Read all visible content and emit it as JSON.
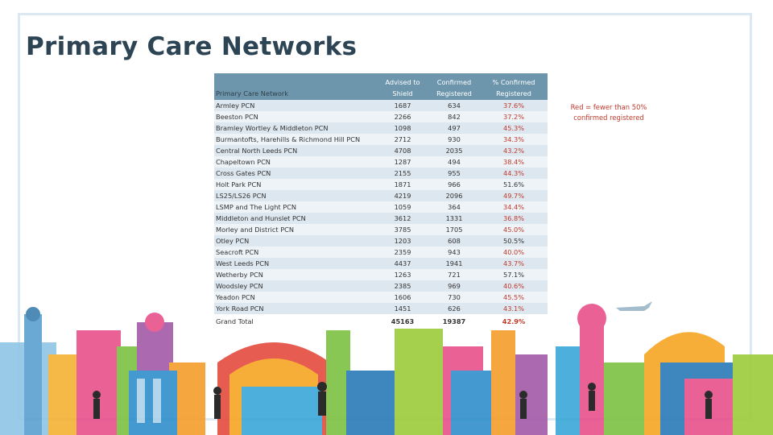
{
  "page": {
    "title": "Primary Care Networks"
  },
  "table": {
    "headers": [
      "Primary Care Network",
      "Advised to Shield",
      "Confirmed Registered",
      "% Confirmed Registered"
    ],
    "rows": [
      {
        "name": "Armley PCN",
        "shield": "1687",
        "confirmed": "634",
        "pct": "37.6%",
        "below_half": true
      },
      {
        "name": "Beeston PCN",
        "shield": "2266",
        "confirmed": "842",
        "pct": "37.2%",
        "below_half": true
      },
      {
        "name": "Bramley Wortley & Middleton PCN",
        "shield": "1098",
        "confirmed": "497",
        "pct": "45.3%",
        "below_half": true
      },
      {
        "name": "Burmantofts, Harehills & Richmond Hill PCN",
        "shield": "2712",
        "confirmed": "930",
        "pct": "34.3%",
        "below_half": true
      },
      {
        "name": "Central North Leeds PCN",
        "shield": "4708",
        "confirmed": "2035",
        "pct": "43.2%",
        "below_half": true
      },
      {
        "name": "Chapeltown PCN",
        "shield": "1287",
        "confirmed": "494",
        "pct": "38.4%",
        "below_half": true
      },
      {
        "name": "Cross Gates PCN",
        "shield": "2155",
        "confirmed": "955",
        "pct": "44.3%",
        "below_half": true
      },
      {
        "name": "Holt Park PCN",
        "shield": "1871",
        "confirmed": "966",
        "pct": "51.6%",
        "below_half": false
      },
      {
        "name": "LS25/LS26 PCN",
        "shield": "4219",
        "confirmed": "2096",
        "pct": "49.7%",
        "below_half": true
      },
      {
        "name": "LSMP and The Light PCN",
        "shield": "1059",
        "confirmed": "364",
        "pct": "34.4%",
        "below_half": true
      },
      {
        "name": "Middleton and Hunslet PCN",
        "shield": "3612",
        "confirmed": "1331",
        "pct": "36.8%",
        "below_half": true
      },
      {
        "name": "Morley and District PCN",
        "shield": "3785",
        "confirmed": "1705",
        "pct": "45.0%",
        "below_half": true
      },
      {
        "name": "Otley PCN",
        "shield": "1203",
        "confirmed": "608",
        "pct": "50.5%",
        "below_half": false
      },
      {
        "name": "Seacroft PCN",
        "shield": "2359",
        "confirmed": "943",
        "pct": "40.0%",
        "below_half": true
      },
      {
        "name": "West Leeds PCN",
        "shield": "4437",
        "confirmed": "1941",
        "pct": "43.7%",
        "below_half": true
      },
      {
        "name": "Wetherby PCN",
        "shield": "1263",
        "confirmed": "721",
        "pct": "57.1%",
        "below_half": false
      },
      {
        "name": "Woodsley PCN",
        "shield": "2385",
        "confirmed": "969",
        "pct": "40.6%",
        "below_half": true
      },
      {
        "name": "Yeadon PCN",
        "shield": "1606",
        "confirmed": "730",
        "pct": "45.5%",
        "below_half": true
      },
      {
        "name": "York Road PCN",
        "shield": "1451",
        "confirmed": "626",
        "pct": "43.1%",
        "below_half": true
      }
    ],
    "total": {
      "name": "Grand Total",
      "shield": "45163",
      "confirmed": "19387",
      "pct": "42.9%",
      "below_half": true
    }
  },
  "note": "Red = fewer than 50% confirmed registered",
  "colors": {
    "header_bg": "#6d96ad",
    "title": "#2d4454",
    "alert": "#c0392b"
  }
}
